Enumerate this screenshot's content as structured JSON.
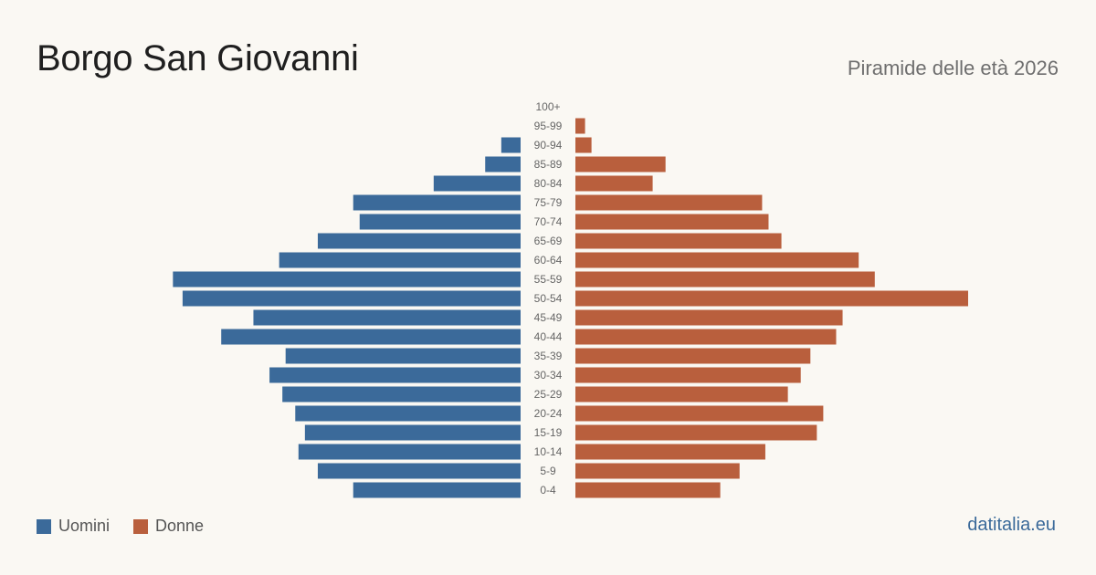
{
  "title": "Borgo San Giovanni",
  "subtitle": "Piramide delle età 2026",
  "source": "datitalia.eu",
  "colors": {
    "men": "#3b6a9a",
    "women": "#b95f3d"
  },
  "legend": {
    "men_label": "Uomini",
    "women_label": "Donne"
  },
  "chart_data": {
    "type": "bar",
    "orientation": "horizontal-pyramid",
    "categories": [
      "100+",
      "95-99",
      "90-94",
      "85-89",
      "80-84",
      "75-79",
      "70-74",
      "65-69",
      "60-64",
      "55-59",
      "50-54",
      "45-49",
      "40-44",
      "35-39",
      "30-34",
      "25-29",
      "20-24",
      "15-19",
      "10-14",
      "5-9",
      "0-4"
    ],
    "series": [
      {
        "name": "Uomini",
        "values": [
          0,
          0,
          6,
          11,
          27,
          52,
          50,
          63,
          75,
          108,
          105,
          83,
          93,
          73,
          78,
          74,
          70,
          67,
          69,
          63,
          52
        ]
      },
      {
        "name": "Donne",
        "values": [
          0,
          3,
          5,
          28,
          24,
          58,
          60,
          64,
          88,
          93,
          122,
          83,
          81,
          73,
          70,
          66,
          77,
          75,
          59,
          51,
          45
        ]
      }
    ],
    "xlim": [
      0,
      122
    ]
  }
}
